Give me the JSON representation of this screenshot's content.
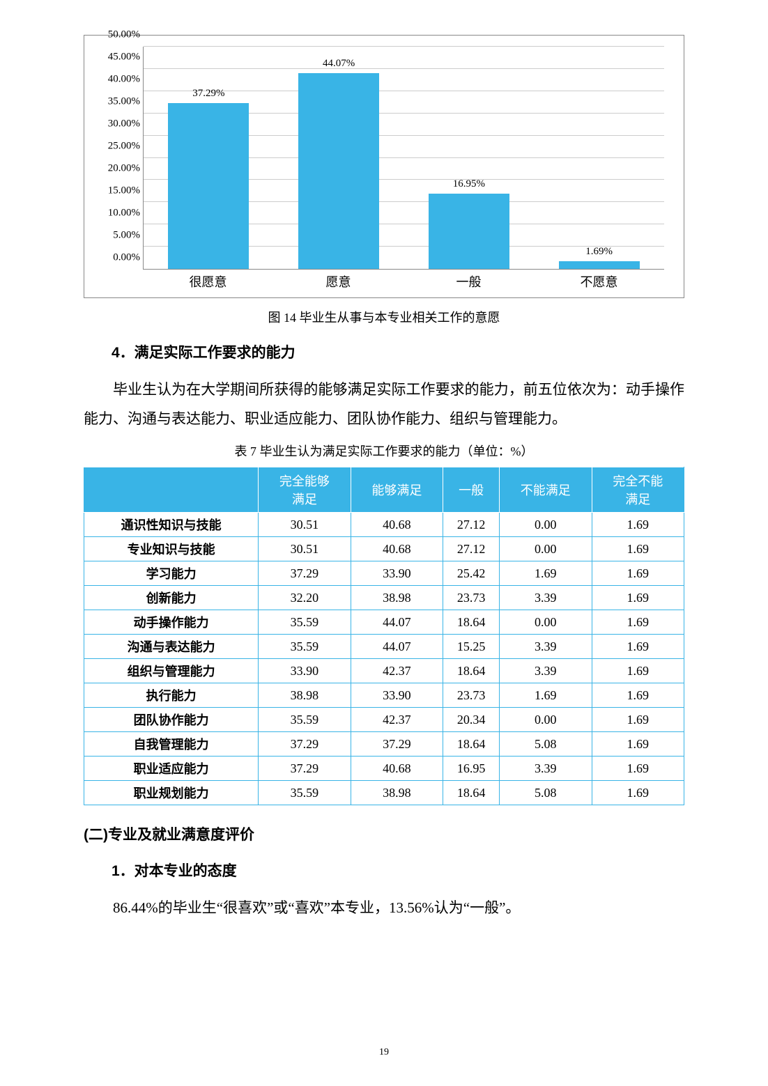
{
  "chart": {
    "type": "bar",
    "categories": [
      "很愿意",
      "愿意",
      "一般",
      "不愿意"
    ],
    "values": [
      37.29,
      44.07,
      16.95,
      1.69
    ],
    "value_labels": [
      "37.29%",
      "44.07%",
      "16.95%",
      "1.69%"
    ],
    "y_ticks": [
      "0.00%",
      "5.00%",
      "10.00%",
      "15.00%",
      "20.00%",
      "25.00%",
      "30.00%",
      "35.00%",
      "40.00%",
      "45.00%",
      "50.00%"
    ],
    "bar_color": "#39b4e6",
    "y_max": 50
  },
  "chart_caption": "图 14 毕业生从事与本专业相关工作的意愿",
  "section4_title": "4．满足实际工作要求的能力",
  "section4_para": "毕业生认为在大学期间所获得的能够满足实际工作要求的能力，前五位依次为：动手操作能力、沟通与表达能力、职业适应能力、团队协作能力、组织与管理能力。",
  "table_caption": "表 7 毕业生认为满足实际工作要求的能力（单位：%）",
  "table": {
    "headers": [
      "",
      "完全能够满足",
      "能够满足",
      "一般",
      "不能满足",
      "完全不能满足"
    ],
    "rows": [
      [
        "通识性知识与技能",
        "30.51",
        "40.68",
        "27.12",
        "0.00",
        "1.69"
      ],
      [
        "专业知识与技能",
        "30.51",
        "40.68",
        "27.12",
        "0.00",
        "1.69"
      ],
      [
        "学习能力",
        "37.29",
        "33.90",
        "25.42",
        "1.69",
        "1.69"
      ],
      [
        "创新能力",
        "32.20",
        "38.98",
        "23.73",
        "3.39",
        "1.69"
      ],
      [
        "动手操作能力",
        "35.59",
        "44.07",
        "18.64",
        "0.00",
        "1.69"
      ],
      [
        "沟通与表达能力",
        "35.59",
        "44.07",
        "15.25",
        "3.39",
        "1.69"
      ],
      [
        "组织与管理能力",
        "33.90",
        "42.37",
        "18.64",
        "3.39",
        "1.69"
      ],
      [
        "执行能力",
        "38.98",
        "33.90",
        "23.73",
        "1.69",
        "1.69"
      ],
      [
        "团队协作能力",
        "35.59",
        "42.37",
        "20.34",
        "0.00",
        "1.69"
      ],
      [
        "自我管理能力",
        "37.29",
        "37.29",
        "18.64",
        "5.08",
        "1.69"
      ],
      [
        "职业适应能力",
        "37.29",
        "40.68",
        "16.95",
        "3.39",
        "1.69"
      ],
      [
        "职业规划能力",
        "35.59",
        "38.98",
        "18.64",
        "5.08",
        "1.69"
      ]
    ]
  },
  "section_b_title": "(二)专业及就业满意度评价",
  "sub1_title": "1．对本专业的态度",
  "sub1_para": "86.44%的毕业生“很喜欢”或“喜欢”本专业，13.56%认为“一般”。",
  "page_number": "19"
}
